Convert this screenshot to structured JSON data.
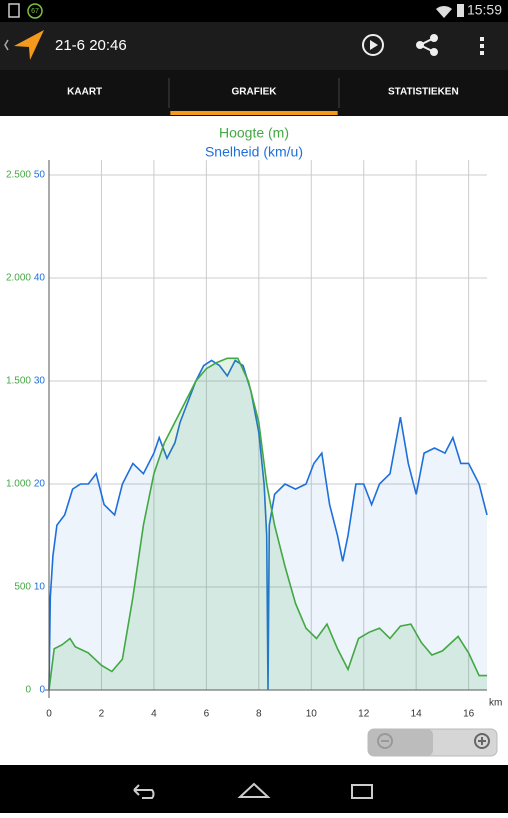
{
  "status_bar": {
    "badge": "67",
    "time": "15:59"
  },
  "action_bar": {
    "title": "21-6 20:46"
  },
  "tabs": [
    {
      "label": "KAART"
    },
    {
      "label": "GRAFIEK",
      "selected": true
    },
    {
      "label": "STATISTIEKEN"
    }
  ],
  "chart_data": {
    "type": "area",
    "series": [
      {
        "name": "Hoogte (m)",
        "color": "#43a843",
        "axis": "y",
        "x": [
          0,
          0.2,
          0.5,
          0.8,
          1.0,
          1.5,
          2.0,
          2.4,
          2.8,
          3.2,
          3.6,
          4.0,
          4.4,
          4.8,
          5.2,
          5.6,
          6.0,
          6.4,
          6.8,
          7.2,
          7.6,
          8.0,
          8.3,
          8.6,
          9.0,
          9.4,
          9.8,
          10.2,
          10.6,
          11.0,
          11.4,
          11.8,
          12.2,
          12.6,
          13.0,
          13.4,
          13.8,
          14.2,
          14.6,
          15.0,
          15.6,
          16.0,
          16.4,
          16.7
        ],
        "values": [
          0,
          200,
          220,
          250,
          210,
          180,
          120,
          90,
          150,
          450,
          800,
          1050,
          1200,
          1300,
          1400,
          1500,
          1560,
          1590,
          1610,
          1610,
          1500,
          1300,
          1000,
          800,
          600,
          420,
          300,
          250,
          320,
          200,
          100,
          250,
          280,
          300,
          250,
          310,
          320,
          230,
          170,
          190,
          260,
          180,
          70,
          70
        ]
      },
      {
        "name": "Snelheid (km/u)",
        "color": "#1e6fdc",
        "axis": "y2",
        "x": [
          0,
          0.05,
          0.15,
          0.3,
          0.6,
          0.9,
          1.2,
          1.5,
          1.8,
          2.1,
          2.5,
          2.8,
          3.2,
          3.6,
          4.0,
          4.2,
          4.5,
          4.8,
          5.0,
          5.3,
          5.6,
          5.9,
          6.2,
          6.5,
          6.8,
          7.1,
          7.4,
          7.7,
          8.0,
          8.2,
          8.3,
          8.35,
          8.4,
          8.6,
          9.0,
          9.4,
          9.8,
          10.1,
          10.4,
          10.7,
          11.0,
          11.2,
          11.4,
          11.7,
          12.0,
          12.3,
          12.6,
          13.0,
          13.4,
          13.7,
          14.0,
          14.3,
          14.7,
          15.1,
          15.4,
          15.7,
          16.0,
          16.4,
          16.7
        ],
        "values": [
          0,
          9,
          13,
          16,
          17,
          19.5,
          20,
          20,
          21,
          18,
          17,
          20,
          22,
          21,
          23,
          24.5,
          22.5,
          24,
          26,
          28,
          30,
          31.5,
          32,
          31.5,
          30.5,
          32,
          31.5,
          29,
          25,
          20,
          15,
          0,
          16,
          19,
          20,
          19.5,
          20,
          22,
          23,
          18,
          15,
          12.5,
          15,
          20,
          20,
          18,
          20,
          21,
          26.5,
          22,
          19,
          23,
          23.5,
          23,
          24.5,
          22,
          22,
          20,
          17
        ]
      }
    ],
    "xlabel": "km",
    "xlim": [
      0,
      16.7
    ],
    "xticks": [
      0,
      2,
      4,
      6,
      8,
      10,
      12,
      14,
      16
    ],
    "ylim": [
      0,
      2500
    ],
    "yticks": [
      0,
      500,
      {
        "value": 1000,
        "label": "1.000"
      },
      {
        "value": 1500,
        "label": "1.500"
      },
      {
        "value": 2000,
        "label": "2.000"
      },
      {
        "value": 2500,
        "label": "2.500"
      }
    ],
    "y2lim": [
      0,
      50
    ],
    "y2ticks": [
      0,
      10,
      20,
      30,
      40,
      50
    ],
    "grid": true
  }
}
